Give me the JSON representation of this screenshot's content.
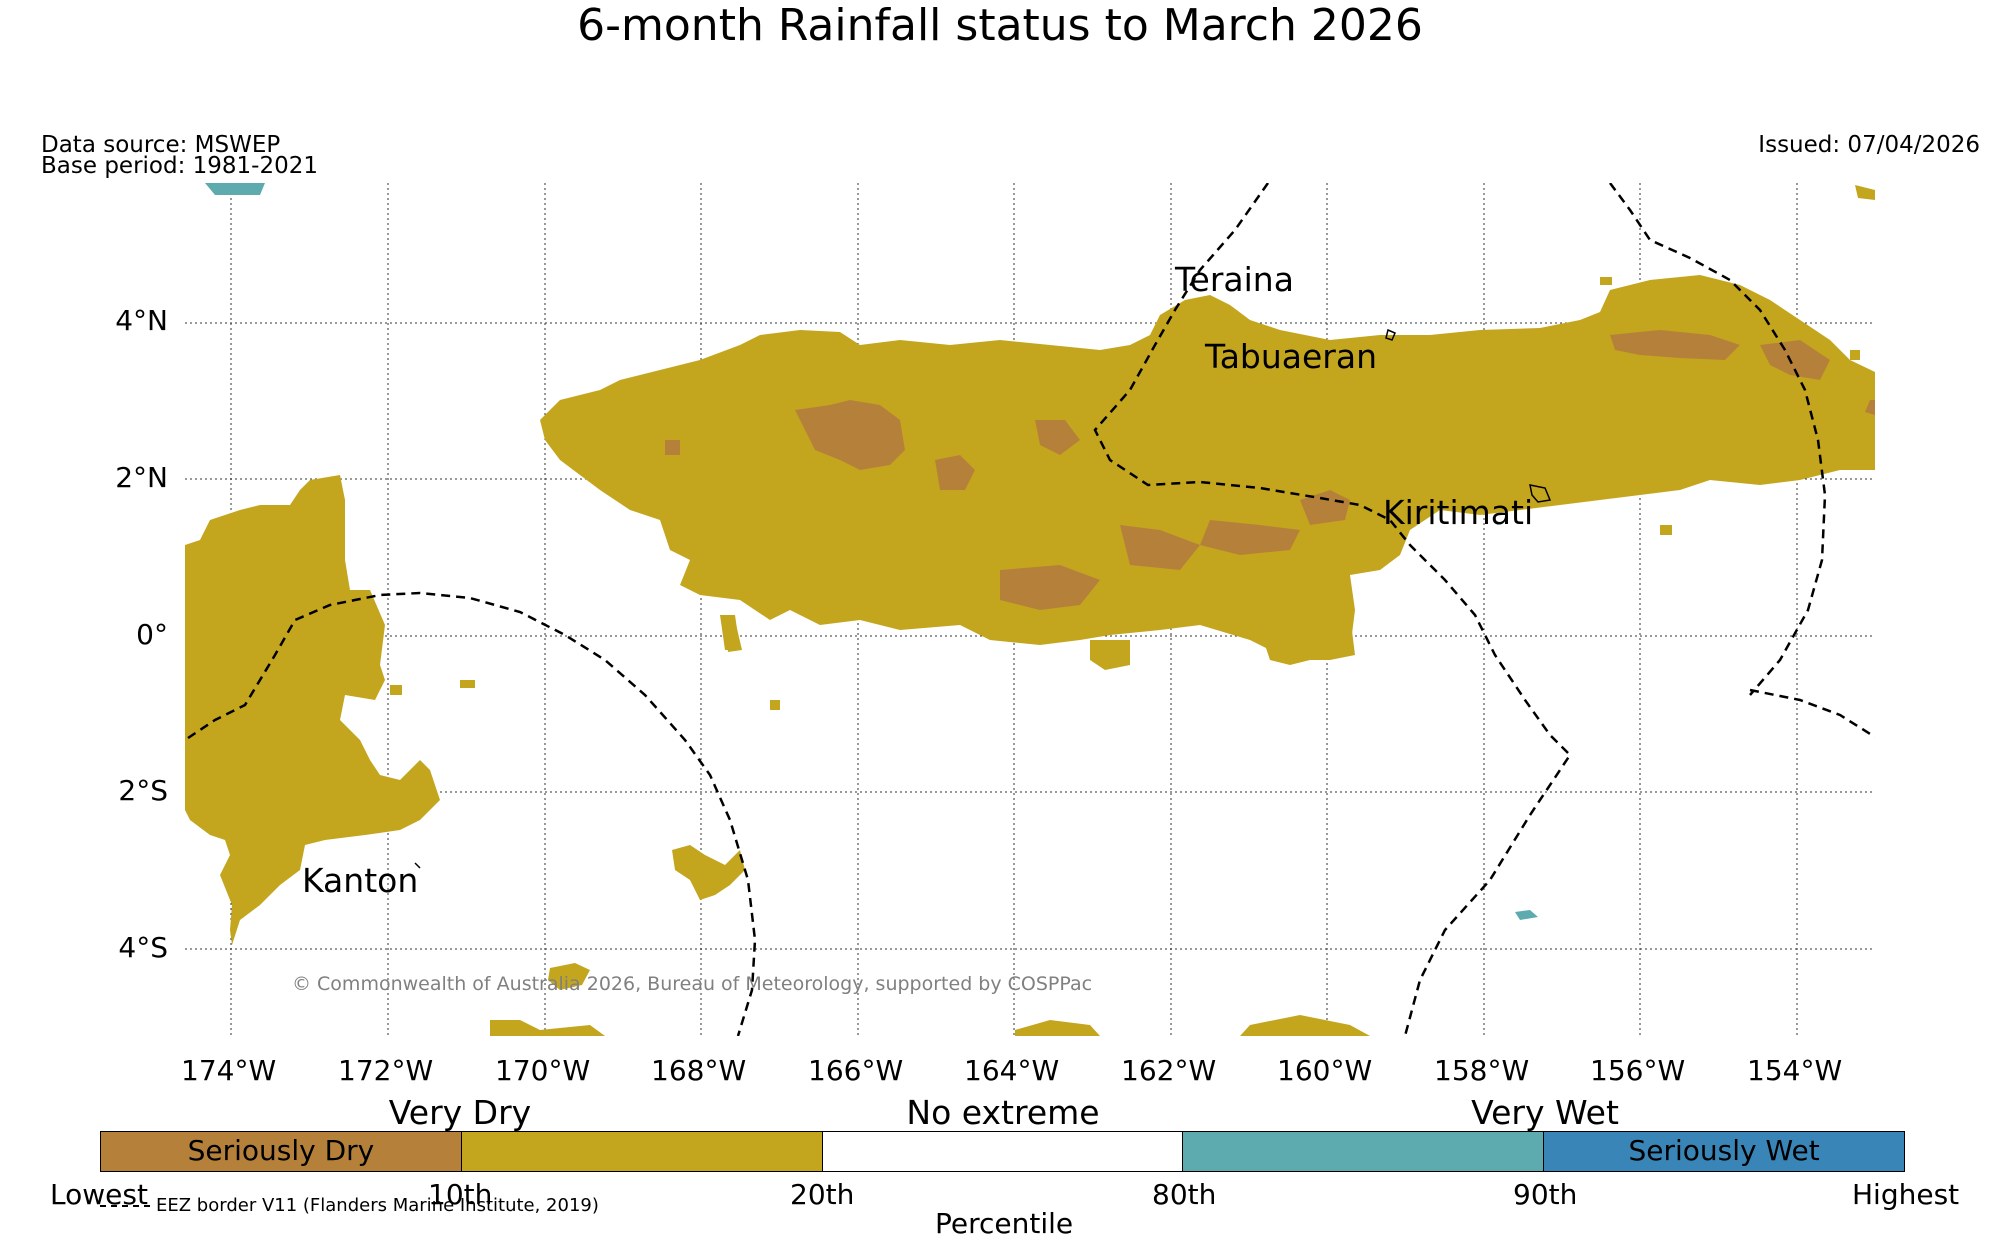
{
  "title": "6-month Rainfall status to March 2026",
  "header": {
    "data_source": "Data source: MSWEP",
    "base_period": "Base period: 1981-2021",
    "issued": "Issued: 07/04/2026"
  },
  "map": {
    "lon_ticks": [
      "174°W",
      "172°W",
      "170°W",
      "168°W",
      "166°W",
      "164°W",
      "162°W",
      "160°W",
      "158°W",
      "156°W",
      "154°W"
    ],
    "lat_ticks": [
      "4°N",
      "2°N",
      "0°",
      "2°S",
      "4°S"
    ],
    "places": {
      "teraina": "Teraina",
      "tabuaeran": "Tabuaeran",
      "kiritimati": "Kiritimati",
      "kanton": "Kanton"
    },
    "copyright": "© Commonwealth of Australia 2026, Bureau of Meteorology, supported by COSPPac"
  },
  "legend": {
    "categories": {
      "very_dry": "Very Dry",
      "no_extreme": "No extreme",
      "very_wet": "Very Wet"
    },
    "boxes": [
      {
        "label": "Seriously Dry",
        "color": "#b5813a"
      },
      {
        "label": "",
        "color": "#c4a51e"
      },
      {
        "label": "",
        "color": "#ffffff"
      },
      {
        "label": "",
        "color": "#5eabaf"
      },
      {
        "label": "Seriously Wet",
        "color": "#3a85b7"
      }
    ],
    "percentiles": [
      "Lowest",
      "10th",
      "20th",
      "80th",
      "90th",
      "Highest"
    ],
    "axis_label": "Percentile",
    "eez_note": "EEZ border V11 (Flanders Marine Institute, 2019)"
  },
  "colors": {
    "seriously_dry": "#b5813a",
    "very_dry": "#c4a51e",
    "very_wet": "#5eabaf",
    "seriously_wet": "#3a85b7"
  }
}
